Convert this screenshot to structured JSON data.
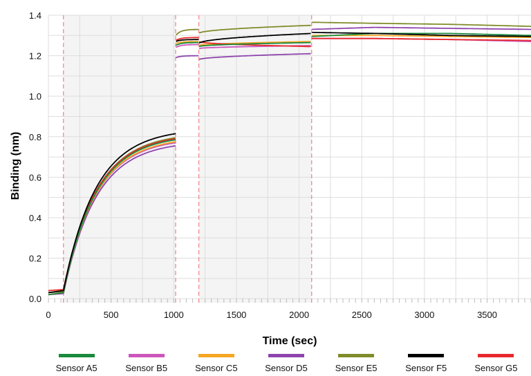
{
  "chart_data": {
    "type": "line",
    "title": "",
    "xlabel": "Time (sec)",
    "ylabel": "Binding (nm)",
    "xlim": [
      0,
      3850
    ],
    "ylim": [
      -0.02,
      1.4
    ],
    "x_ticks": [
      0,
      500,
      1000,
      1500,
      2000,
      2500,
      3000,
      3500
    ],
    "y_ticks": [
      0.0,
      0.2,
      0.4,
      0.6,
      0.8,
      1.0,
      1.2,
      1.4
    ],
    "x_tick_labels": [
      "0",
      "500",
      "1000",
      "1500",
      "2000",
      "2500",
      "3000",
      "3500"
    ],
    "y_tick_labels": [
      "0.0",
      "0.2",
      "0.4",
      "0.6",
      "0.8",
      "1.0",
      "1.2",
      "1.4"
    ],
    "grid": true,
    "legend_position": "bottom",
    "step_markers": [
      120,
      1015,
      1200,
      2100
    ],
    "colors": {
      "background": "#ffffff",
      "shaded_region": "#f4f4f4",
      "grid": "#dddddd",
      "step_marker": "#f08a8a"
    },
    "series": [
      {
        "name": "Sensor A5",
        "color": "#1a8a3c",
        "values": [
          0.02,
          0.03,
          0.785,
          1.25,
          1.265,
          1.265,
          1.295,
          1.31,
          1.31,
          1.3
        ]
      },
      {
        "name": "Sensor B5",
        "color": "#cc55bb",
        "values": [
          0.03,
          0.035,
          0.77,
          1.24,
          1.255,
          1.25,
          1.285,
          1.285,
          1.28,
          1.27
        ]
      },
      {
        "name": "Sensor C5",
        "color": "#f5a623",
        "values": [
          0.02,
          0.03,
          0.775,
          1.26,
          1.27,
          1.27,
          1.3,
          1.3,
          1.295,
          1.29
        ]
      },
      {
        "name": "Sensor D5",
        "color": "#8e44ad",
        "values": [
          0.02,
          0.025,
          0.755,
          1.19,
          1.2,
          1.21,
          1.33,
          1.34,
          1.335,
          1.33
        ]
      },
      {
        "name": "Sensor E5",
        "color": "#808c2a",
        "values": [
          0.03,
          0.035,
          0.795,
          1.3,
          1.33,
          1.35,
          1.365,
          1.36,
          1.355,
          1.345
        ]
      },
      {
        "name": "Sensor F5",
        "color": "#000000",
        "values": [
          0.03,
          0.04,
          0.815,
          1.27,
          1.28,
          1.31,
          1.315,
          1.31,
          1.3,
          1.295
        ]
      },
      {
        "name": "Sensor G5",
        "color": "#e8282c",
        "values": [
          0.04,
          0.045,
          0.79,
          1.275,
          1.29,
          1.245,
          1.285,
          1.285,
          1.28,
          1.275
        ]
      }
    ]
  }
}
